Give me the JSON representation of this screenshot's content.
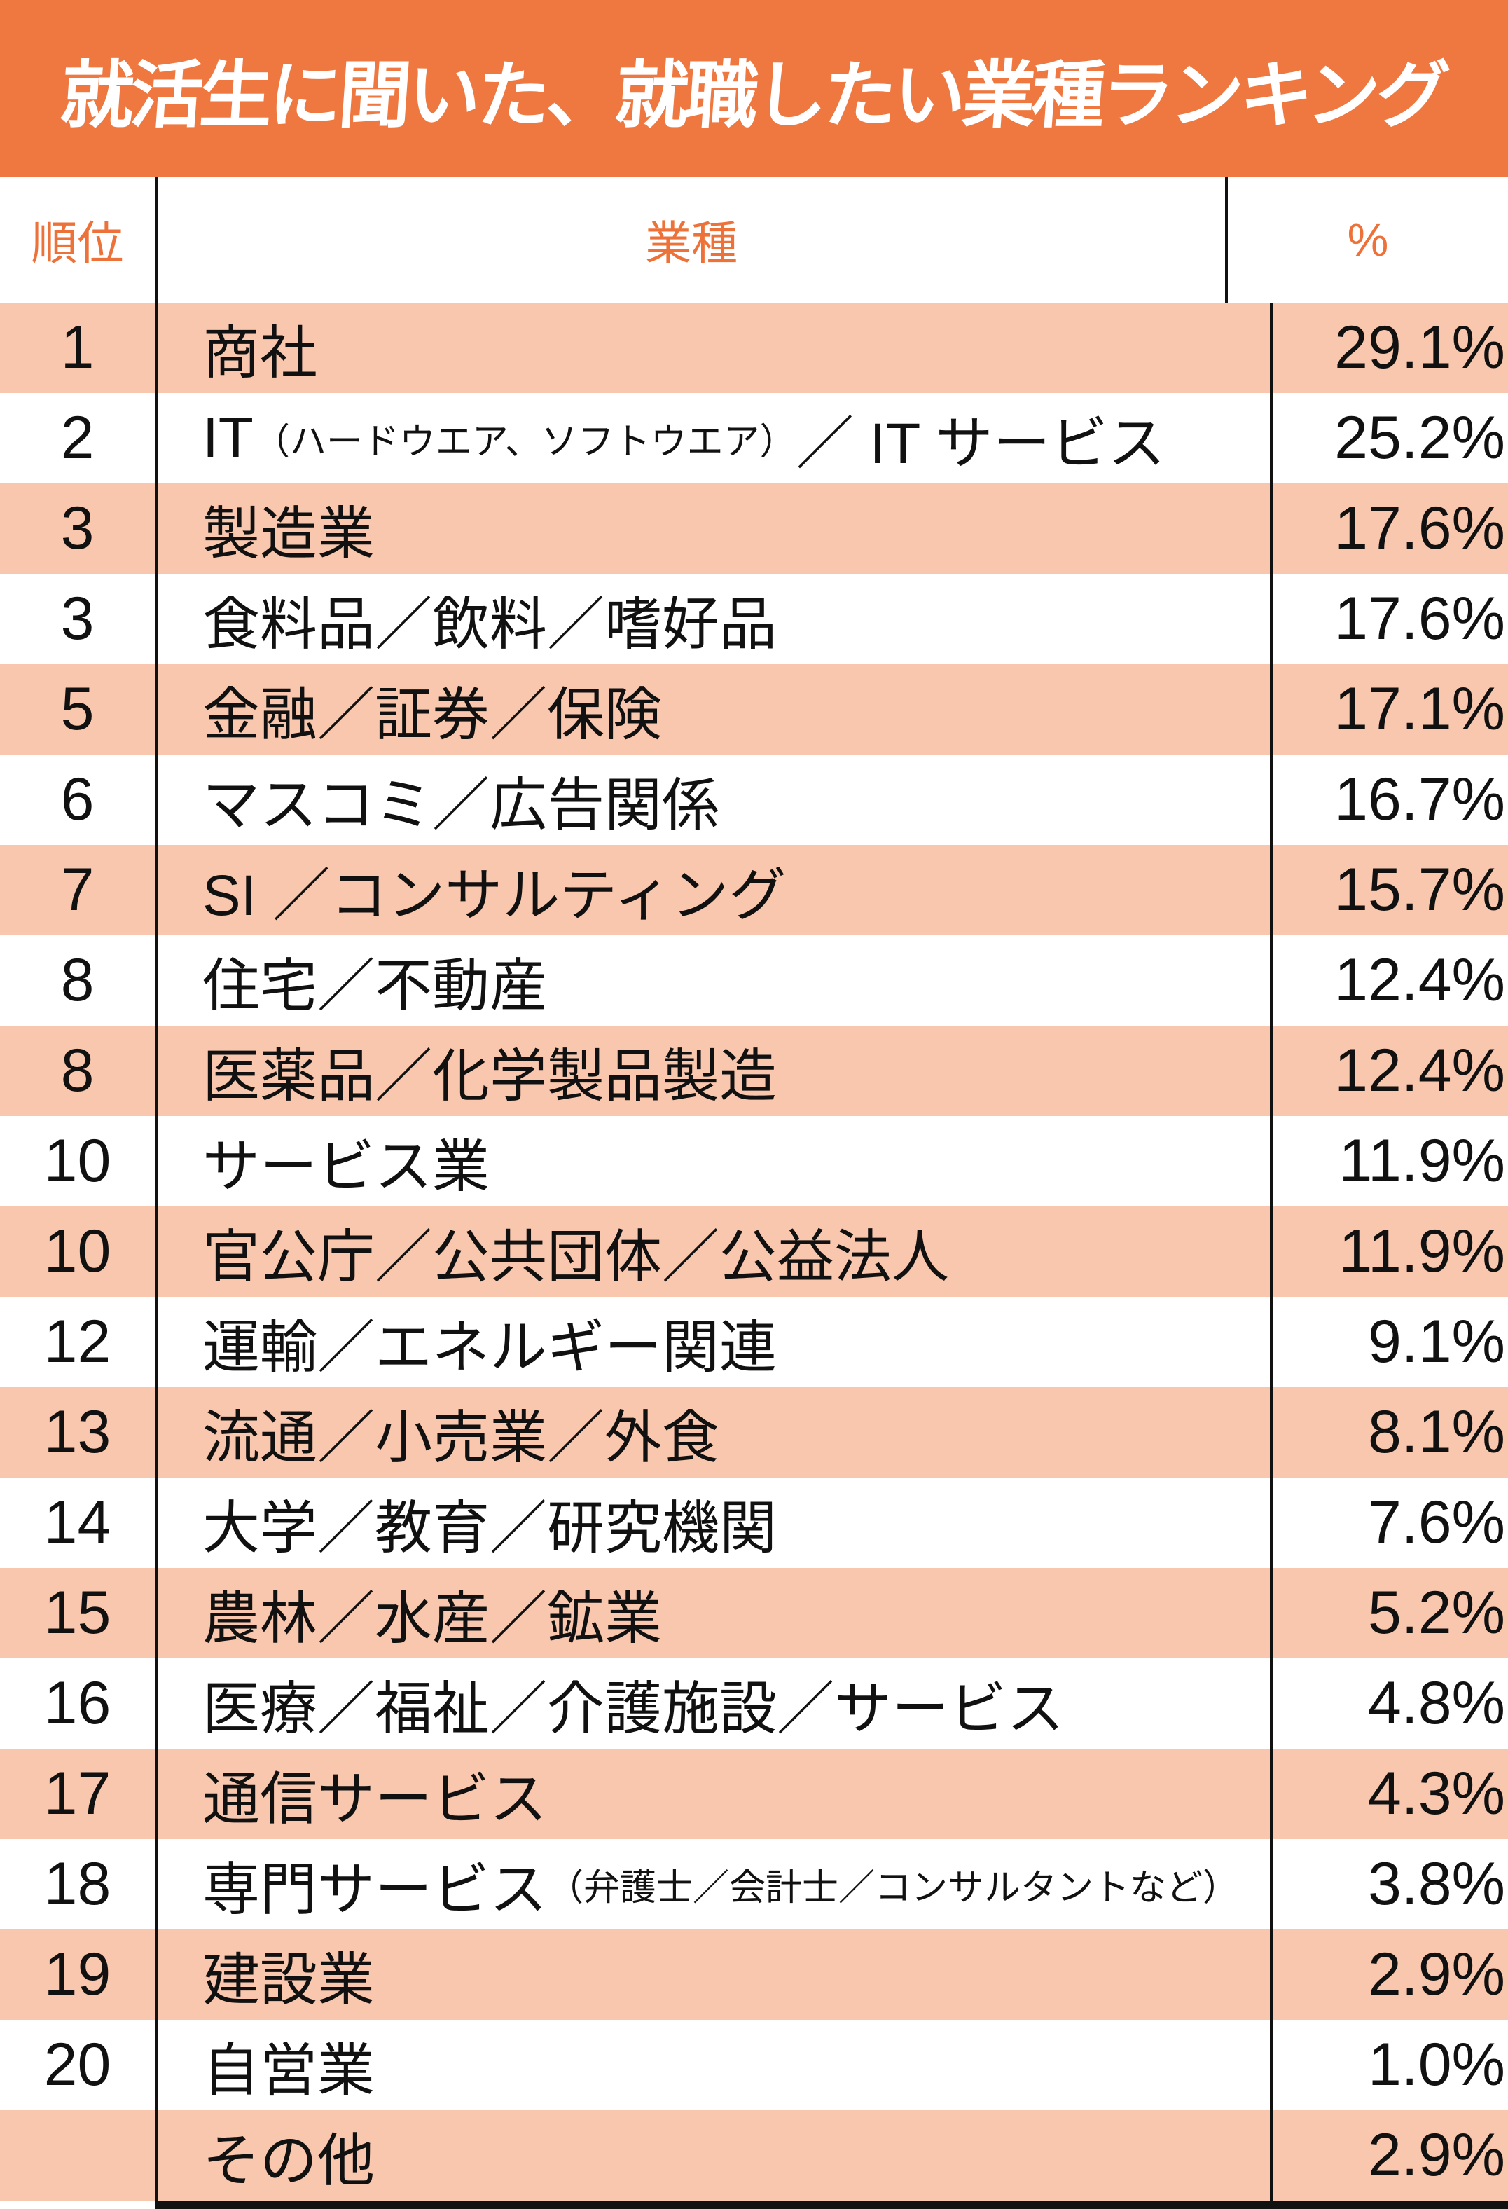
{
  "title": "就活生に聞いた、就職したい業種ランキング",
  "colors": {
    "band_orange": "#EE7840",
    "row_salmon": "#F8C7AE",
    "header_text_orange": "#ED7239",
    "line_black": "#111111",
    "title_text": "#FFFFFF",
    "body_text": "#111111"
  },
  "chart_data": {
    "type": "table",
    "title": "就活生に聞いた、就職したい業種ランキング",
    "columns": [
      "順位",
      "業種",
      "%"
    ],
    "rows": [
      {
        "rank": "1",
        "name": "商社",
        "note": "",
        "name2": "",
        "percent": "29.1%",
        "value": 29.1
      },
      {
        "rank": "2",
        "name": "IT",
        "note": "（ハードウエア、ソフトウエア）",
        "name2": "／ IT サービス",
        "percent": "25.2%",
        "value": 25.2
      },
      {
        "rank": "3",
        "name": "製造業",
        "note": "",
        "name2": "",
        "percent": "17.6%",
        "value": 17.6
      },
      {
        "rank": "3",
        "name": "食料品／飲料／嗜好品",
        "note": "",
        "name2": "",
        "percent": "17.6%",
        "value": 17.6
      },
      {
        "rank": "5",
        "name": "金融／証券／保険",
        "note": "",
        "name2": "",
        "percent": "17.1%",
        "value": 17.1
      },
      {
        "rank": "6",
        "name": "マスコミ／広告関係",
        "note": "",
        "name2": "",
        "percent": "16.7%",
        "value": 16.7
      },
      {
        "rank": "7",
        "name": "SI ／コンサルティング",
        "note": "",
        "name2": "",
        "percent": "15.7%",
        "value": 15.7
      },
      {
        "rank": "8",
        "name": "住宅／不動産",
        "note": "",
        "name2": "",
        "percent": "12.4%",
        "value": 12.4
      },
      {
        "rank": "8",
        "name": "医薬品／化学製品製造",
        "note": "",
        "name2": "",
        "percent": "12.4%",
        "value": 12.4
      },
      {
        "rank": "10",
        "name": "サービス業",
        "note": "",
        "name2": "",
        "percent": "11.9%",
        "value": 11.9
      },
      {
        "rank": "10",
        "name": "官公庁／公共団体／公益法人",
        "note": "",
        "name2": "",
        "percent": "11.9%",
        "value": 11.9
      },
      {
        "rank": "12",
        "name": "運輸／エネルギー関連",
        "note": "",
        "name2": "",
        "percent": "9.1%",
        "value": 9.1
      },
      {
        "rank": "13",
        "name": "流通／小売業／外食",
        "note": "",
        "name2": "",
        "percent": "8.1%",
        "value": 8.1
      },
      {
        "rank": "14",
        "name": "大学／教育／研究機関",
        "note": "",
        "name2": "",
        "percent": "7.6%",
        "value": 7.6
      },
      {
        "rank": "15",
        "name": "農林／水産／鉱業",
        "note": "",
        "name2": "",
        "percent": "5.2%",
        "value": 5.2
      },
      {
        "rank": "16",
        "name": "医療／福祉／介護施設／サービス",
        "note": "",
        "name2": "",
        "percent": "4.8%",
        "value": 4.8
      },
      {
        "rank": "17",
        "name": "通信サービス",
        "note": "",
        "name2": "",
        "percent": "4.3%",
        "value": 4.3
      },
      {
        "rank": "18",
        "name": "専門サービス",
        "note": "（弁護士／会計士／コンサルタントなど）",
        "name2": "",
        "percent": "3.8%",
        "value": 3.8
      },
      {
        "rank": "19",
        "name": "建設業",
        "note": "",
        "name2": "",
        "percent": "2.9%",
        "value": 2.9
      },
      {
        "rank": "20",
        "name": "自営業",
        "note": "",
        "name2": "",
        "percent": "1.0%",
        "value": 1.0
      },
      {
        "rank": "",
        "name": "その他",
        "note": "",
        "name2": "",
        "percent": "2.9%",
        "value": 2.9
      }
    ]
  }
}
